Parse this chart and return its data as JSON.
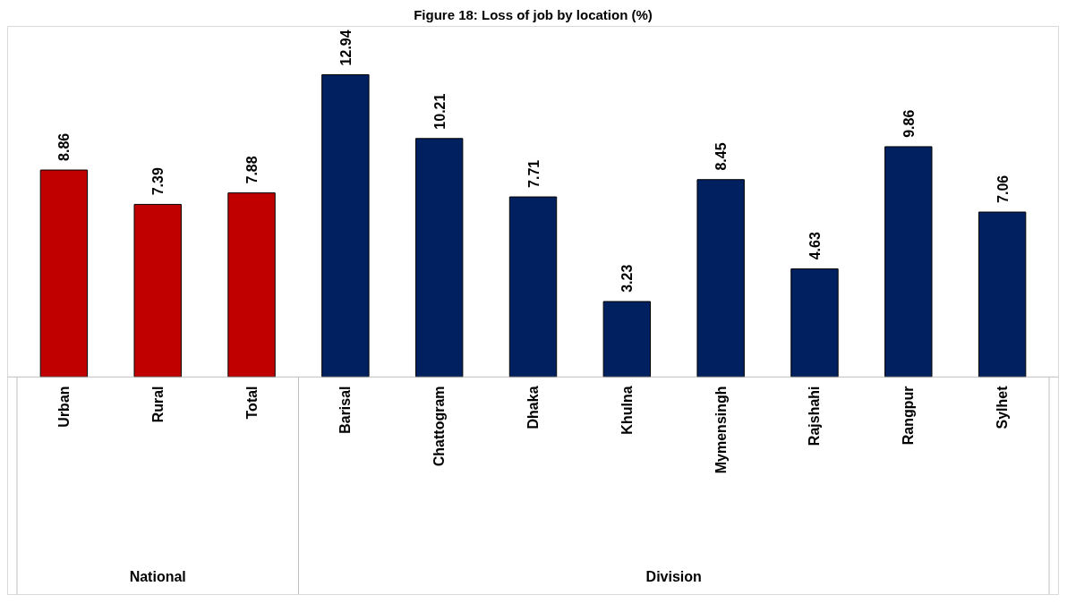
{
  "chart_data": {
    "type": "bar",
    "title": "Figure 18: Loss of job by location (%)",
    "categories": [
      "Urban",
      "Rural",
      "Total",
      "Barisal",
      "Chattogram",
      "Dhaka",
      "Khulna",
      "Mymensingh",
      "Rajshahi",
      "Rangpur",
      "Sylhet"
    ],
    "values": [
      8.86,
      7.39,
      7.88,
      12.94,
      10.21,
      7.71,
      3.23,
      8.45,
      4.63,
      9.86,
      7.06
    ],
    "colors": [
      "#c00000",
      "#c00000",
      "#c00000",
      "#002060",
      "#002060",
      "#002060",
      "#002060",
      "#002060",
      "#002060",
      "#002060",
      "#002060"
    ],
    "data_labels": true,
    "grid": false,
    "annotations": [
      "National",
      "Division"
    ]
  }
}
